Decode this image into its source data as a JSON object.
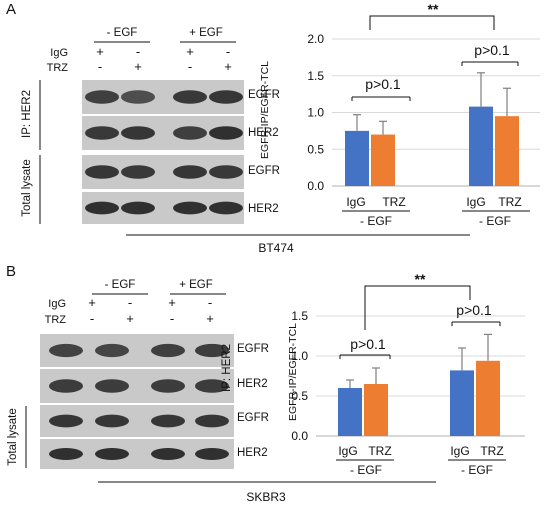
{
  "figure": {
    "panel_a": {
      "label": "A",
      "cell_line": "BT474",
      "condition_headers": [
        "- EGF",
        "+ EGF"
      ],
      "treatment_rows": [
        {
          "label": "IgG",
          "signs": [
            "+",
            "-",
            "+",
            "-"
          ]
        },
        {
          "label": "TRZ",
          "signs": [
            "-",
            "+",
            "-",
            "+"
          ]
        }
      ],
      "group_labels": [
        "IP: HER2",
        "Total lysate"
      ],
      "blot_labels": [
        "EGFR",
        "HER2",
        "EGFR",
        "HER2"
      ],
      "blot_intensity": [
        [
          0.72,
          0.6,
          0.78,
          0.8
        ],
        [
          0.78,
          0.8,
          0.72,
          0.85
        ],
        [
          0.8,
          0.78,
          0.8,
          0.78
        ],
        [
          0.85,
          0.85,
          0.85,
          0.85
        ]
      ]
    },
    "panel_b": {
      "label": "B",
      "cell_line": "SKBR3",
      "condition_headers": [
        "- EGF",
        "+ EGF"
      ],
      "treatment_rows": [
        {
          "label": "IgG",
          "signs": [
            "+",
            "-",
            "+",
            "-"
          ]
        },
        {
          "label": "TRZ",
          "signs": [
            "-",
            "+",
            "-",
            "+"
          ]
        }
      ],
      "group_labels": [
        "IP: HER2",
        "Total lysate"
      ],
      "blot_labels": [
        "EGFR",
        "HER2",
        "EGFR",
        "HER2"
      ],
      "blot_intensity": [
        [
          0.7,
          0.68,
          0.72,
          0.74
        ],
        [
          0.75,
          0.75,
          0.75,
          0.75
        ],
        [
          0.8,
          0.8,
          0.8,
          0.8
        ],
        [
          0.85,
          0.85,
          0.85,
          0.85
        ]
      ]
    }
  },
  "chart_data": [
    {
      "type": "bar",
      "panel": "A",
      "ylabel": "EGFR-IP/EGFR-TCL",
      "ylim": [
        0,
        2.0
      ],
      "yticks": [
        "0.0",
        "0.5",
        "1.0",
        "1.5",
        "2.0"
      ],
      "grid": true,
      "tick_values": [
        0,
        0.5,
        1.0,
        1.5,
        2.0
      ],
      "categories": [
        "- EGF",
        "- EGF"
      ],
      "series": [
        {
          "name": "IgG",
          "values": [
            0.75,
            1.08
          ],
          "errors": [
            0.22,
            0.46
          ],
          "color": "#4472C4"
        },
        {
          "name": "TRZ",
          "values": [
            0.7,
            0.95
          ],
          "errors": [
            0.18,
            0.38
          ],
          "color": "#ED7D31"
        }
      ],
      "annotations": [
        "p>0.1",
        "p>0.1",
        "**"
      ]
    },
    {
      "type": "bar",
      "panel": "B",
      "ylabel": "EGFR-IP/EGFR-TCL",
      "ylim": [
        0,
        1.5
      ],
      "yticks": [
        "0.0",
        "0.5",
        "1.0",
        "1.5"
      ],
      "grid": true,
      "tick_values": [
        0,
        0.5,
        1.0,
        1.5
      ],
      "categories": [
        "- EGF",
        "- EGF"
      ],
      "series": [
        {
          "name": "IgG",
          "values": [
            0.6,
            0.82
          ],
          "errors": [
            0.1,
            0.28
          ],
          "color": "#4472C4"
        },
        {
          "name": "TRZ",
          "values": [
            0.65,
            0.94
          ],
          "errors": [
            0.2,
            0.33
          ],
          "color": "#ED7D31"
        }
      ],
      "annotations": [
        "p>0.1",
        "p>0.1",
        "**"
      ]
    }
  ]
}
